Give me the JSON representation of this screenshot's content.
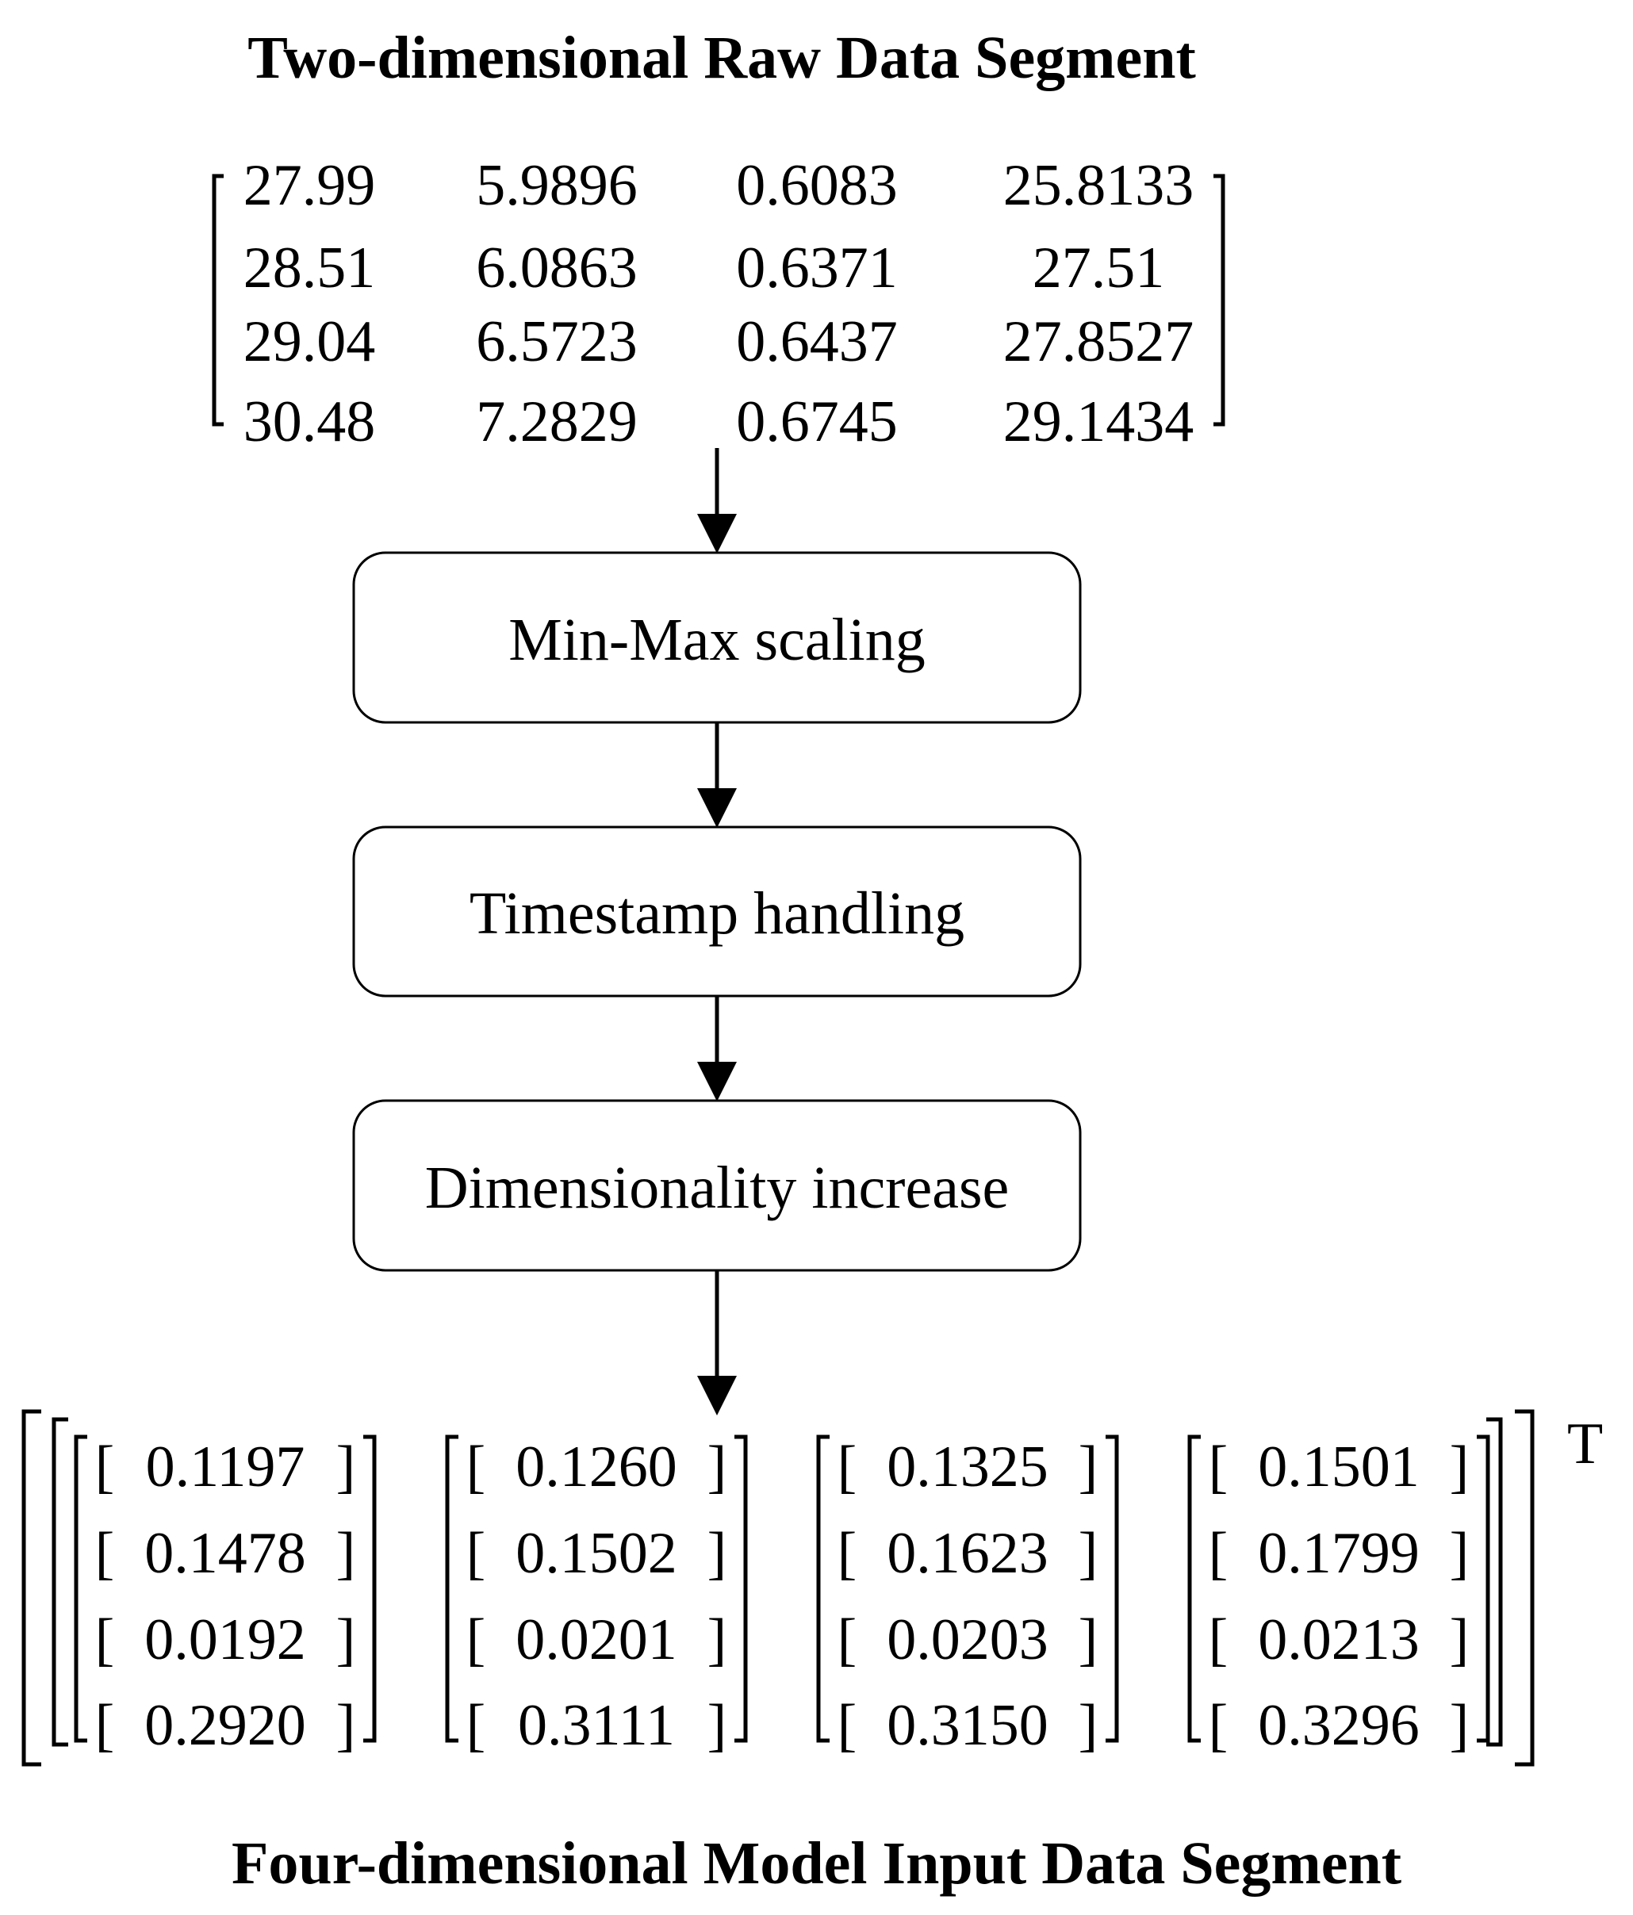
{
  "top_title": "Two-dimensional Raw Data Segment",
  "bottom_title": "Four-dimensional Model Input Data Segment",
  "raw_matrix": [
    [
      "27.99",
      "5.9896",
      "0.6083",
      "25.8133"
    ],
    [
      "28.51",
      "6.0863",
      "0.6371",
      "27.51"
    ],
    [
      "29.04",
      "6.5723",
      "0.6437",
      "27.8527"
    ],
    [
      "30.48",
      "7.2829",
      "0.6745",
      "29.1434"
    ]
  ],
  "steps": [
    "Min-Max scaling",
    "Timestamp handling",
    "Dimensionality increase"
  ],
  "output_columns": [
    [
      "0.1197",
      "0.1478",
      "0.0192",
      "0.2920"
    ],
    [
      "0.1260",
      "0.1502",
      "0.0201",
      "0.3111"
    ],
    [
      "0.1325",
      "0.1623",
      "0.0203",
      "0.3150"
    ],
    [
      "0.1501",
      "0.1799",
      "0.0213",
      "0.3296"
    ]
  ],
  "transpose_symbol": "T"
}
